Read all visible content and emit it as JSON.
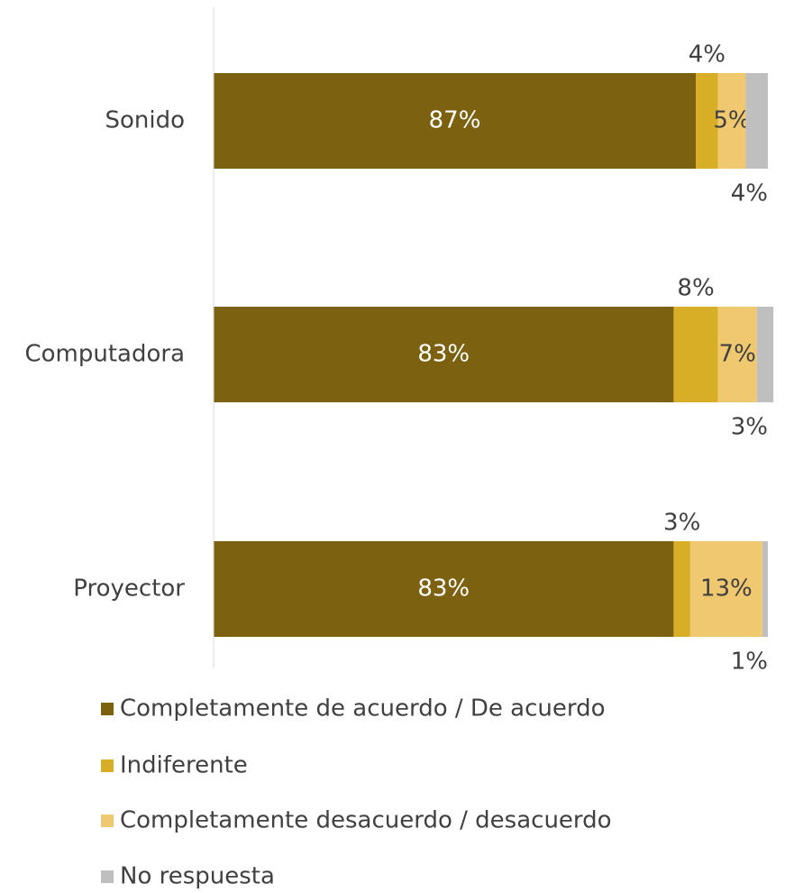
{
  "chart_data": {
    "type": "stacked_barh",
    "categories": [
      "Sonido",
      "Computadora",
      "Proyector"
    ],
    "series": [
      {
        "name": "Completamente de acuerdo / De acuerdo",
        "color": "#7b6110",
        "values": [
          87,
          83,
          83
        ]
      },
      {
        "name": "Indiferente",
        "color": "#d9ae27",
        "values": [
          4,
          8,
          3
        ]
      },
      {
        "name": "Completamente desacuerdo / desacuerdo",
        "color": "#efc870",
        "values": [
          5,
          7,
          13
        ]
      },
      {
        "name": "No respuesta",
        "color": "#bfbfbf",
        "values": [
          4,
          3,
          1
        ]
      }
    ],
    "value_labels": [
      [
        "87%",
        "83%",
        "83%"
      ],
      [
        "4%",
        "8%",
        "3%"
      ],
      [
        "5%",
        "7%",
        "13%"
      ],
      [
        "4%",
        "3%",
        "1%"
      ]
    ],
    "xlim": [
      0,
      100
    ],
    "legend": "bottom"
  }
}
